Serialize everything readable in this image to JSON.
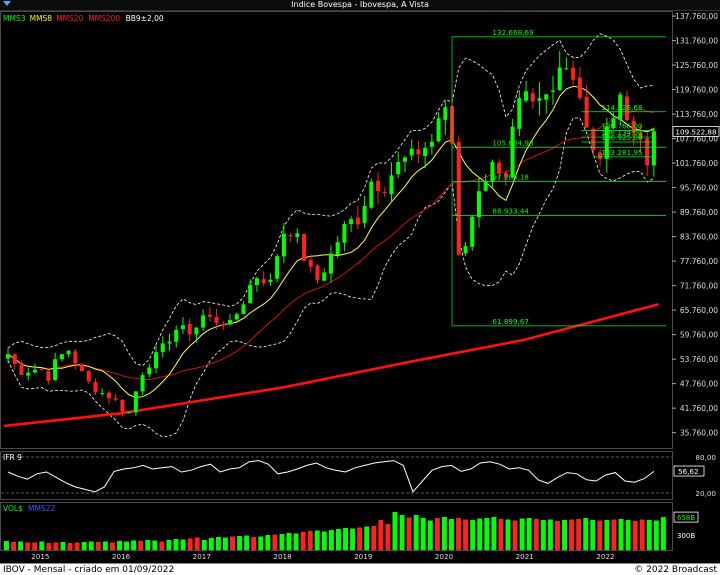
{
  "window": {
    "title": "Indice Bovespa - Ibovespa, A Vista"
  },
  "legend": [
    {
      "text": "MMS3",
      "color": "#00ff00"
    },
    {
      "text": "MMS8",
      "color": "#ffff00"
    },
    {
      "text": "MMS20",
      "color": "#ff2020"
    },
    {
      "text": "MMS200",
      "color": "#ff2020"
    },
    {
      "text": "BB9±2,00",
      "color": "#ffffff"
    }
  ],
  "footer": {
    "left": "IBOV - Mensal - criado em 01/09/2022",
    "right": "© 2022 Broadcast"
  },
  "colors": {
    "up": "#00ff00",
    "down": "#ff2020",
    "mms200": "#ff1010",
    "mms20": "#d01010",
    "mms8": "#ffff40",
    "band": "#ffffff",
    "fib": "#00ff00"
  },
  "chart_data": [
    {
      "type": "candlestick",
      "title": "Indice Bovespa - Ibovespa, A Vista",
      "x_ticks": [
        "2015",
        "2016",
        "2017",
        "2018",
        "2019",
        "2020",
        "2021",
        "2022"
      ],
      "y_ticks": [
        "137.760,00",
        "131.760,00",
        "125.760,00",
        "119.760,00",
        "113.760,00",
        "107.760,00",
        "101.760,00",
        "95.760,00",
        "89.760,00",
        "83.760,00",
        "77.760,00",
        "71.760,00",
        "65.760,00",
        "59.760,00",
        "53.760,00",
        "47.760,00",
        "41.760,00",
        "35.760,00"
      ],
      "ylim": [
        32000,
        139000
      ],
      "last_price_label": "109.522,88",
      "anchors": [
        [
          2014.6,
          55000
        ],
        [
          2014.75,
          50500
        ],
        [
          2015.0,
          51500
        ],
        [
          2015.1,
          49200
        ],
        [
          2015.2,
          53800
        ],
        [
          2015.35,
          56000
        ],
        [
          2015.5,
          50800
        ],
        [
          2015.65,
          46700
        ],
        [
          2015.8,
          45100
        ],
        [
          2015.95,
          43400
        ],
        [
          2016.08,
          39500
        ],
        [
          2016.25,
          50000
        ],
        [
          2016.4,
          53800
        ],
        [
          2016.55,
          57500
        ],
        [
          2016.7,
          61500
        ],
        [
          2016.9,
          60200
        ],
        [
          2017.0,
          64500
        ],
        [
          2017.2,
          63000
        ],
        [
          2017.35,
          62300
        ],
        [
          2017.5,
          67000
        ],
        [
          2017.65,
          74300
        ],
        [
          2017.85,
          72500
        ],
        [
          2018.0,
          84900
        ],
        [
          2018.15,
          85200
        ],
        [
          2018.3,
          76700
        ],
        [
          2018.45,
          72800
        ],
        [
          2018.6,
          79300
        ],
        [
          2018.8,
          87400
        ],
        [
          2018.95,
          87900
        ],
        [
          2019.1,
          97400
        ],
        [
          2019.25,
          95400
        ],
        [
          2019.4,
          100900
        ],
        [
          2019.55,
          103100
        ],
        [
          2019.7,
          104700
        ],
        [
          2019.85,
          107000
        ],
        [
          2019.97,
          115600
        ],
        [
          2020.05,
          113000
        ],
        [
          2020.12,
          104200
        ],
        [
          2020.2,
          73000
        ],
        [
          2020.3,
          86700
        ],
        [
          2020.45,
          95000
        ],
        [
          2020.6,
          102900
        ],
        [
          2020.75,
          94600
        ],
        [
          2020.85,
          108900
        ],
        [
          2020.97,
          119000
        ],
        [
          2021.1,
          115800
        ],
        [
          2021.3,
          118900
        ],
        [
          2021.45,
          126800
        ],
        [
          2021.55,
          125000
        ],
        [
          2021.65,
          121800
        ],
        [
          2021.75,
          110900
        ],
        [
          2021.88,
          101900
        ],
        [
          2021.97,
          104800
        ],
        [
          2022.05,
          112100
        ],
        [
          2022.2,
          119999
        ],
        [
          2022.3,
          107900
        ],
        [
          2022.42,
          111350
        ],
        [
          2022.5,
          98540
        ],
        [
          2022.58,
          103160
        ],
        [
          2022.66,
          109522
        ]
      ],
      "annotations": [
        {
          "label": "132.668,69",
          "value": 132669
        },
        {
          "label": "114.326,68",
          "value": 114327
        },
        {
          "label": "109.766,00",
          "value": 109766
        },
        {
          "label": "108.134,00",
          "value": 108134
        },
        {
          "label": "106.925,00",
          "value": 106925
        },
        {
          "label": "105.634,93",
          "value": 105635
        },
        {
          "label": "103.281,95",
          "value": 103282
        },
        {
          "label": "97.284,18",
          "value": 97284
        },
        {
          "label": "88.933,44",
          "value": 88933
        },
        {
          "label": "61.899,67",
          "value": 61900
        }
      ]
    },
    {
      "type": "line",
      "title": "IFR 9",
      "y_ticks": [
        "80,00",
        "56,62",
        "20,00"
      ],
      "last_value": 56.62,
      "ylim": [
        10,
        90
      ],
      "levels": [
        80,
        20
      ],
      "values": [
        55,
        48,
        43,
        52,
        55,
        46,
        37,
        30,
        26,
        22,
        30,
        56,
        60,
        62,
        66,
        60,
        62,
        64,
        55,
        58,
        64,
        68,
        55,
        60,
        62,
        72,
        74,
        68,
        52,
        55,
        60,
        66,
        70,
        62,
        58,
        55,
        62,
        66,
        70,
        72,
        74,
        66,
        22,
        40,
        58,
        64,
        66,
        56,
        60,
        70,
        72,
        68,
        60,
        62,
        58,
        42,
        36,
        46,
        54,
        52,
        42,
        40,
        50,
        54,
        40,
        38,
        44,
        56
      ]
    },
    {
      "type": "bar",
      "title": "VOL$",
      "series_names": [
        "VOL$",
        "MMS22"
      ],
      "y_ticks": [
        "658B",
        "300B"
      ],
      "ylim": [
        0,
        800
      ],
      "volumes": [
        180,
        160,
        170,
        150,
        150,
        170,
        140,
        150,
        160,
        140,
        150,
        160,
        170,
        160,
        170,
        150,
        180,
        170,
        190,
        180,
        200,
        190,
        170,
        200,
        220,
        210,
        230,
        250,
        200,
        240,
        260,
        250,
        270,
        280,
        290,
        260,
        270,
        300,
        310,
        320,
        340,
        330,
        360,
        380,
        390,
        370,
        400,
        420,
        440,
        430,
        450,
        470,
        480,
        600,
        520,
        760,
        700,
        650,
        700,
        640,
        590,
        640,
        660,
        620,
        640,
        610,
        600,
        630,
        640,
        660,
        620,
        610,
        590,
        630,
        640,
        620,
        600,
        610,
        580,
        600,
        610,
        620,
        640,
        600,
        590,
        600,
        610,
        620,
        600,
        580,
        610,
        600,
        590,
        658
      ],
      "colors": [
        "up",
        "down",
        "up",
        "down",
        "down",
        "up",
        "down",
        "down",
        "up",
        "down",
        "down",
        "up",
        "up",
        "down",
        "up",
        "down",
        "up",
        "up",
        "up",
        "down",
        "up",
        "up",
        "down",
        "up",
        "up",
        "up",
        "down",
        "down",
        "up",
        "up",
        "up",
        "up",
        "down",
        "up",
        "up",
        "down",
        "up",
        "up",
        "down",
        "up",
        "up",
        "up",
        "down",
        "down",
        "up",
        "up",
        "up",
        "up",
        "up",
        "up",
        "down",
        "up",
        "down",
        "down",
        "down",
        "up",
        "up",
        "down",
        "up",
        "up",
        "up",
        "down",
        "up",
        "up",
        "down",
        "down",
        "up",
        "up",
        "up",
        "up",
        "down",
        "up",
        "down",
        "up",
        "up",
        "down",
        "up",
        "up",
        "down",
        "up",
        "down",
        "down",
        "up",
        "up",
        "down",
        "up",
        "down",
        "up",
        "up",
        "down",
        "down",
        "up",
        "up",
        "up"
      ]
    }
  ]
}
